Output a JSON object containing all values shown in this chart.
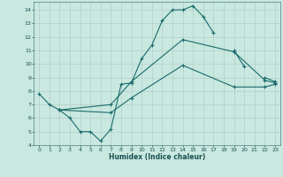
{
  "xlabel": "Humidex (Indice chaleur)",
  "xlim": [
    -0.5,
    23.5
  ],
  "ylim": [
    4,
    14.6
  ],
  "yticks": [
    4,
    5,
    6,
    7,
    8,
    9,
    10,
    11,
    12,
    13,
    14
  ],
  "xticks": [
    0,
    1,
    2,
    3,
    4,
    5,
    6,
    7,
    8,
    9,
    10,
    11,
    12,
    13,
    14,
    15,
    16,
    17,
    18,
    19,
    20,
    21,
    22,
    23
  ],
  "background_color": "#c8e8e0",
  "grid_color": "#b0c8c0",
  "line_color": "#1a6b6b",
  "line1_x": [
    0,
    1,
    2,
    3,
    4,
    5,
    6,
    7,
    8,
    9,
    10,
    11,
    12,
    13,
    14,
    15,
    16,
    17,
    18,
    19,
    20,
    21,
    22,
    23
  ],
  "line1_y": [
    7.8,
    7.0,
    6.6,
    6.0,
    5.0,
    5.0,
    4.3,
    5.2,
    8.5,
    8.6,
    10.4,
    11.4,
    13.2,
    14.0,
    14.0,
    14.3,
    13.5,
    12.3,
    null,
    11.0,
    9.8,
    null,
    9.0,
    8.7
  ],
  "line2_x": [
    2,
    7,
    9,
    14,
    19,
    22,
    23
  ],
  "line2_y": [
    6.6,
    7.0,
    8.7,
    11.8,
    10.9,
    8.8,
    8.6
  ],
  "line3_x": [
    2,
    7,
    9,
    14,
    19,
    22,
    23
  ],
  "line3_y": [
    6.6,
    6.4,
    7.5,
    9.9,
    8.3,
    8.3,
    8.5
  ],
  "xlabel_fontsize": 5.5,
  "tick_fontsize": 4.5,
  "marker_size": 2.5,
  "linewidth": 0.8
}
